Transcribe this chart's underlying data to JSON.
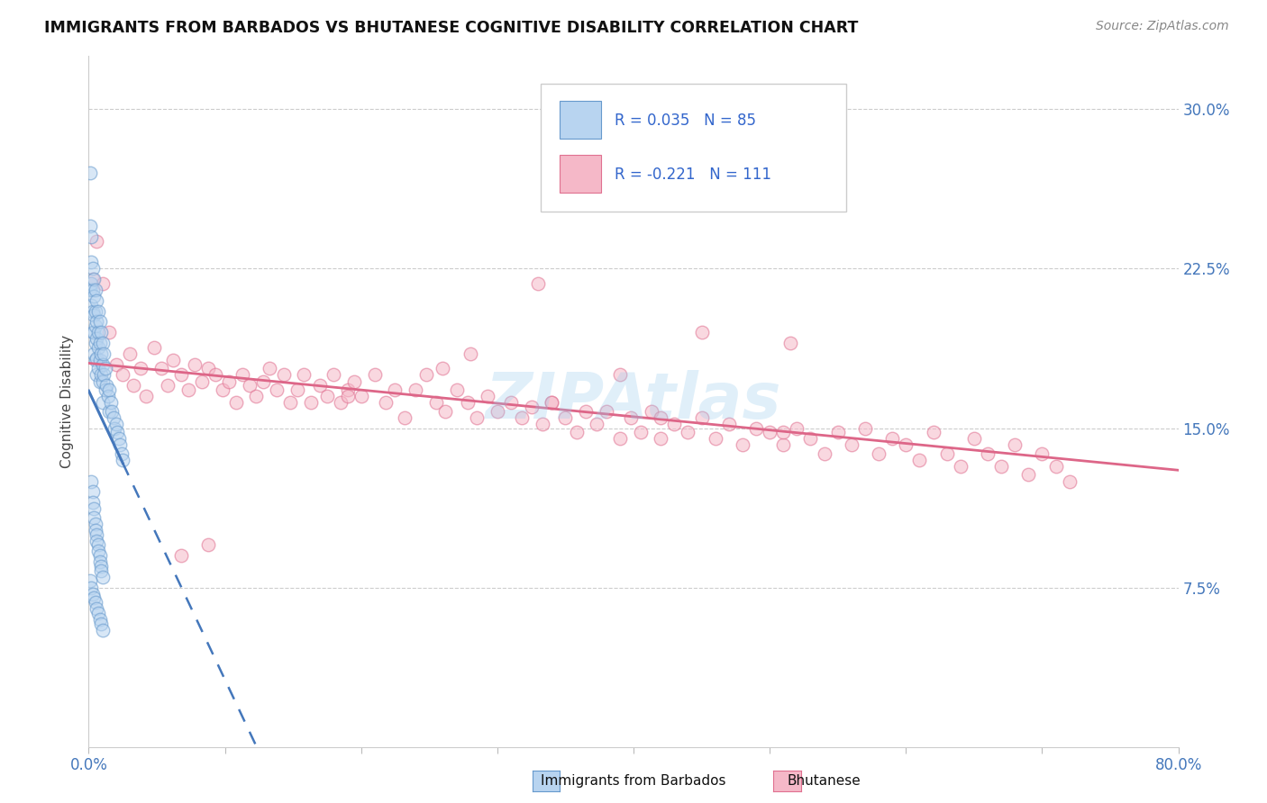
{
  "title": "IMMIGRANTS FROM BARBADOS VS BHUTANESE COGNITIVE DISABILITY CORRELATION CHART",
  "source": "Source: ZipAtlas.com",
  "ylabel": "Cognitive Disability",
  "ytick_values": [
    0.075,
    0.15,
    0.225,
    0.3
  ],
  "ytick_labels": [
    "7.5%",
    "15.0%",
    "22.5%",
    "30.0%"
  ],
  "xrange": [
    0.0,
    0.8
  ],
  "yrange": [
    0.0,
    0.325
  ],
  "legend_r1": "0.035",
  "legend_n1": "85",
  "legend_r2": "-0.221",
  "legend_n2": "111",
  "color_barbados_fill": "#b8d4f0",
  "color_barbados_edge": "#6699cc",
  "color_bhutanese_fill": "#f5b8c8",
  "color_bhutanese_edge": "#e07090",
  "color_barbados_line": "#4477bb",
  "color_bhutanese_line": "#dd6688",
  "watermark": "ZIPAtlas",
  "barbados_x": [
    0.001,
    0.001,
    0.001,
    0.002,
    0.002,
    0.002,
    0.002,
    0.003,
    0.003,
    0.003,
    0.003,
    0.004,
    0.004,
    0.004,
    0.004,
    0.004,
    0.005,
    0.005,
    0.005,
    0.005,
    0.005,
    0.006,
    0.006,
    0.006,
    0.006,
    0.006,
    0.007,
    0.007,
    0.007,
    0.007,
    0.008,
    0.008,
    0.008,
    0.008,
    0.009,
    0.009,
    0.009,
    0.01,
    0.01,
    0.01,
    0.01,
    0.011,
    0.011,
    0.012,
    0.012,
    0.013,
    0.014,
    0.015,
    0.015,
    0.016,
    0.017,
    0.018,
    0.019,
    0.02,
    0.021,
    0.022,
    0.023,
    0.024,
    0.025,
    0.002,
    0.003,
    0.003,
    0.004,
    0.004,
    0.005,
    0.005,
    0.006,
    0.006,
    0.007,
    0.007,
    0.008,
    0.008,
    0.009,
    0.009,
    0.01,
    0.001,
    0.002,
    0.003,
    0.004,
    0.005,
    0.006,
    0.007,
    0.008,
    0.009,
    0.01
  ],
  "barbados_y": [
    0.27,
    0.245,
    0.215,
    0.24,
    0.228,
    0.218,
    0.208,
    0.225,
    0.215,
    0.205,
    0.195,
    0.22,
    0.212,
    0.203,
    0.195,
    0.185,
    0.215,
    0.205,
    0.198,
    0.19,
    0.182,
    0.21,
    0.2,
    0.192,
    0.183,
    0.175,
    0.205,
    0.195,
    0.188,
    0.178,
    0.2,
    0.19,
    0.182,
    0.172,
    0.195,
    0.185,
    0.175,
    0.19,
    0.18,
    0.172,
    0.162,
    0.185,
    0.175,
    0.178,
    0.168,
    0.17,
    0.165,
    0.168,
    0.158,
    0.162,
    0.158,
    0.155,
    0.15,
    0.152,
    0.148,
    0.145,
    0.142,
    0.138,
    0.135,
    0.125,
    0.12,
    0.115,
    0.112,
    0.108,
    0.105,
    0.102,
    0.1,
    0.097,
    0.095,
    0.092,
    0.09,
    0.087,
    0.085,
    0.083,
    0.08,
    0.078,
    0.075,
    0.072,
    0.07,
    0.068,
    0.065,
    0.063,
    0.06,
    0.058,
    0.055
  ],
  "bhutanese_x": [
    0.003,
    0.006,
    0.01,
    0.015,
    0.02,
    0.025,
    0.03,
    0.033,
    0.038,
    0.042,
    0.048,
    0.053,
    0.058,
    0.062,
    0.068,
    0.073,
    0.078,
    0.083,
    0.088,
    0.093,
    0.098,
    0.103,
    0.108,
    0.113,
    0.118,
    0.123,
    0.128,
    0.133,
    0.138,
    0.143,
    0.148,
    0.153,
    0.158,
    0.163,
    0.17,
    0.175,
    0.18,
    0.185,
    0.19,
    0.195,
    0.2,
    0.21,
    0.218,
    0.225,
    0.232,
    0.24,
    0.248,
    0.255,
    0.262,
    0.27,
    0.278,
    0.285,
    0.293,
    0.3,
    0.31,
    0.318,
    0.325,
    0.333,
    0.34,
    0.35,
    0.358,
    0.365,
    0.373,
    0.38,
    0.39,
    0.398,
    0.405,
    0.413,
    0.42,
    0.43,
    0.44,
    0.45,
    0.46,
    0.47,
    0.48,
    0.49,
    0.5,
    0.51,
    0.52,
    0.53,
    0.54,
    0.55,
    0.56,
    0.57,
    0.58,
    0.59,
    0.6,
    0.61,
    0.62,
    0.63,
    0.64,
    0.65,
    0.66,
    0.67,
    0.68,
    0.69,
    0.7,
    0.71,
    0.72,
    0.33,
    0.45,
    0.28,
    0.39,
    0.515,
    0.068,
    0.088,
    0.19,
    0.26,
    0.34,
    0.42,
    0.51
  ],
  "bhutanese_y": [
    0.22,
    0.238,
    0.218,
    0.195,
    0.18,
    0.175,
    0.185,
    0.17,
    0.178,
    0.165,
    0.188,
    0.178,
    0.17,
    0.182,
    0.175,
    0.168,
    0.18,
    0.172,
    0.178,
    0.175,
    0.168,
    0.172,
    0.162,
    0.175,
    0.17,
    0.165,
    0.172,
    0.178,
    0.168,
    0.175,
    0.162,
    0.168,
    0.175,
    0.162,
    0.17,
    0.165,
    0.175,
    0.162,
    0.168,
    0.172,
    0.165,
    0.175,
    0.162,
    0.168,
    0.155,
    0.168,
    0.175,
    0.162,
    0.158,
    0.168,
    0.162,
    0.155,
    0.165,
    0.158,
    0.162,
    0.155,
    0.16,
    0.152,
    0.162,
    0.155,
    0.148,
    0.158,
    0.152,
    0.158,
    0.145,
    0.155,
    0.148,
    0.158,
    0.145,
    0.152,
    0.148,
    0.155,
    0.145,
    0.152,
    0.142,
    0.15,
    0.148,
    0.142,
    0.15,
    0.145,
    0.138,
    0.148,
    0.142,
    0.15,
    0.138,
    0.145,
    0.142,
    0.135,
    0.148,
    0.138,
    0.132,
    0.145,
    0.138,
    0.132,
    0.142,
    0.128,
    0.138,
    0.132,
    0.125,
    0.218,
    0.195,
    0.185,
    0.175,
    0.19,
    0.09,
    0.095,
    0.165,
    0.178,
    0.162,
    0.155,
    0.148
  ]
}
